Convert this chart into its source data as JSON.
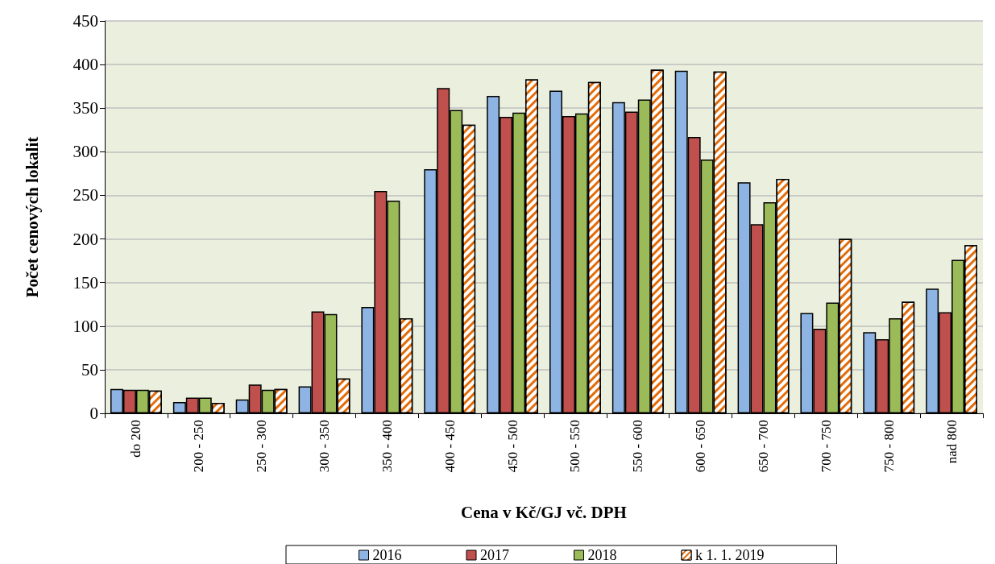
{
  "chart_data": {
    "type": "bar",
    "xlabel": "Cena v Kč/GJ vč. DPH",
    "ylabel": "Počet cenových lokalit",
    "categories": [
      "do 200",
      "200 - 250",
      "250 - 300",
      "300 - 350",
      "350 - 400",
      "400 - 450",
      "450 - 500",
      "500 - 550",
      "550 - 600",
      "600 - 650",
      "650 - 700",
      "700 - 750",
      "750 - 800",
      "nad 800"
    ],
    "series": [
      {
        "name": "2016",
        "color": "#8eb4e3",
        "values": [
          28,
          13,
          16,
          31,
          122,
          280,
          364,
          370,
          357,
          393,
          265,
          115,
          93,
          143
        ]
      },
      {
        "name": "2017",
        "color": "#c0504d",
        "values": [
          27,
          18,
          33,
          117,
          255,
          373,
          340,
          341,
          346,
          317,
          217,
          97,
          85,
          116
        ]
      },
      {
        "name": "2018",
        "color": "#9bbb59",
        "values": [
          27,
          18,
          27,
          114,
          244,
          348,
          345,
          344,
          360,
          291,
          242,
          127,
          109,
          176
        ]
      },
      {
        "name": "k 1. 1. 2019",
        "color": "#e36c09",
        "values": [
          26,
          12,
          28,
          40,
          109,
          331,
          383,
          380,
          394,
          392,
          269,
          200,
          128,
          193
        ]
      }
    ],
    "ylim": [
      0,
      450
    ],
    "yticks": [
      0,
      50,
      100,
      150,
      200,
      250,
      300,
      350,
      400,
      450
    ],
    "grid": "y",
    "legend": "bottom"
  }
}
